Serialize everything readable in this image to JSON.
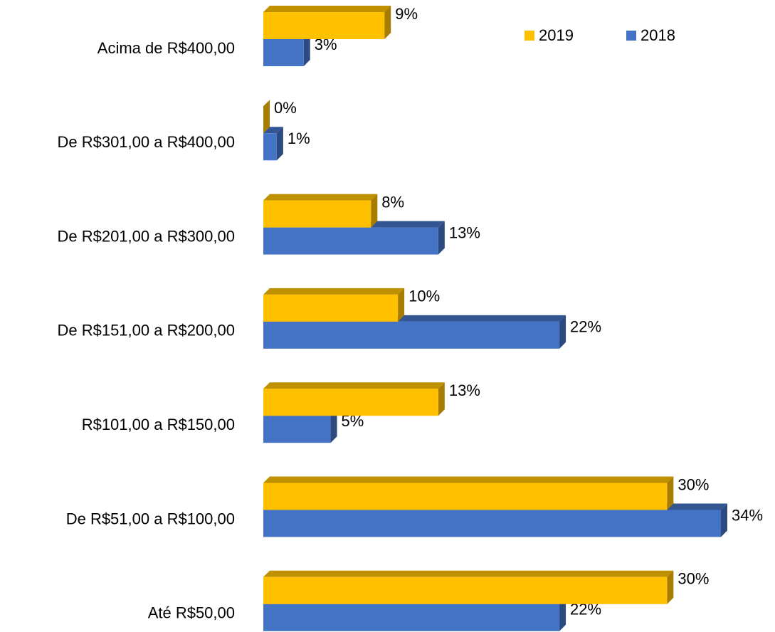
{
  "chart_data": {
    "type": "bar3d_horizontal",
    "categories": [
      "Acima de R$400,00",
      "De R$301,00 a R$400,00",
      "De R$201,00 a R$300,00",
      "De R$151,00 a R$200,00",
      "R$101,00 a R$150,00",
      "De R$51,00 a R$100,00",
      "Até R$50,00"
    ],
    "series": [
      {
        "name": "2019",
        "color": "#ffc000",
        "values": [
          9,
          0,
          8,
          10,
          13,
          30,
          30
        ],
        "value_labels": [
          "9%",
          "0%",
          "8%",
          "10%",
          "13%",
          "30%",
          "30%"
        ]
      },
      {
        "name": "2018",
        "color": "#4472c4",
        "values": [
          3,
          1,
          13,
          22,
          5,
          34,
          22
        ],
        "value_labels": [
          "3%",
          "1%",
          "13%",
          "22%",
          "5%",
          "34%",
          "22%"
        ]
      }
    ],
    "legend": "top-right"
  }
}
